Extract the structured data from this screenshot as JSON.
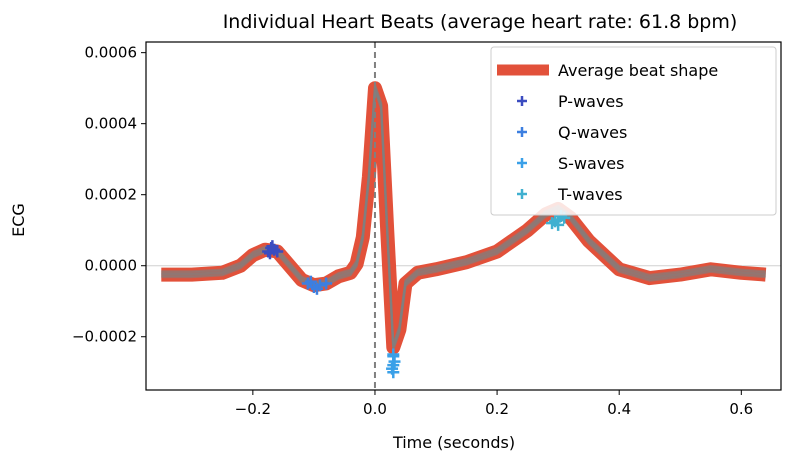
{
  "chart_data": {
    "type": "line",
    "title": "Individual Heart Beats (average heart rate: 61.8 bpm)",
    "xlabel": "Time (seconds)",
    "ylabel": "ECG",
    "xlim": [
      -0.375,
      0.665
    ],
    "ylim": [
      -0.00035,
      0.00063
    ],
    "x_ticks": [
      {
        "value": -0.2,
        "label": "−0.2"
      },
      {
        "value": 0.0,
        "label": "0.0"
      },
      {
        "value": 0.2,
        "label": "0.2"
      },
      {
        "value": 0.4,
        "label": "0.4"
      },
      {
        "value": 0.6,
        "label": "0.6"
      }
    ],
    "y_ticks": [
      {
        "value": -0.0002,
        "label": "−0.0002"
      },
      {
        "value": 0.0,
        "label": "0.0000"
      },
      {
        "value": 0.0002,
        "label": "0.0002"
      },
      {
        "value": 0.0004,
        "label": "0.0004"
      },
      {
        "value": 0.0006,
        "label": "0.0006"
      }
    ],
    "grid": false,
    "legend_position": "top-right",
    "zero_line": true,
    "r_peak_line_x": 0.0,
    "average_beat": {
      "name": "Average beat shape",
      "color": "#e2513a",
      "x": [
        -0.35,
        -0.3,
        -0.25,
        -0.22,
        -0.2,
        -0.18,
        -0.16,
        -0.14,
        -0.12,
        -0.1,
        -0.08,
        -0.06,
        -0.04,
        -0.03,
        -0.02,
        -0.01,
        0.0,
        0.01,
        0.02,
        0.03,
        0.04,
        0.05,
        0.07,
        0.1,
        0.15,
        0.2,
        0.25,
        0.28,
        0.3,
        0.32,
        0.35,
        0.4,
        0.45,
        0.5,
        0.55,
        0.6,
        0.64
      ],
      "y": [
        -2.5e-05,
        -2.5e-05,
        -2e-05,
        0.0,
        3e-05,
        4.5e-05,
        4e-05,
        0.0,
        -4e-05,
        -5.5e-05,
        -5e-05,
        -3e-05,
        -2e-05,
        5e-06,
        8e-05,
        0.00025,
        0.0005,
        0.00045,
        0.0001,
        -0.00023,
        -0.00018,
        -5e-05,
        -2e-05,
        -1e-05,
        1e-05,
        4e-05,
        0.0001,
        0.000145,
        0.00016,
        0.000135,
        7e-05,
        -1e-05,
        -3.5e-05,
        -2.5e-05,
        -1e-05,
        -2e-05,
        -2.5e-05
      ]
    },
    "beat_traces": {
      "color": "#808080",
      "offsets": [
        6e-06,
        -4e-06,
        2e-06,
        -7e-06,
        9e-06,
        0.0
      ]
    },
    "markers": [
      {
        "name": "P-waves",
        "color": "#3b4cc0",
        "points": [
          [
            -0.175,
            4e-05
          ],
          [
            -0.17,
            5e-05
          ],
          [
            -0.165,
            4.5e-05
          ],
          [
            -0.16,
            4e-05
          ],
          [
            -0.172,
            3.5e-05
          ],
          [
            -0.168,
            5.5e-05
          ]
        ]
      },
      {
        "name": "Q-waves",
        "color": "#3c7fe0",
        "points": [
          [
            -0.11,
            -5e-05
          ],
          [
            -0.1,
            -6e-05
          ],
          [
            -0.09,
            -5.5e-05
          ],
          [
            -0.08,
            -5e-05
          ],
          [
            -0.095,
            -6.5e-05
          ],
          [
            -0.105,
            -4.5e-05
          ]
        ]
      },
      {
        "name": "S-waves",
        "color": "#3aa0e8",
        "points": [
          [
            0.03,
            -0.00025
          ],
          [
            0.03,
            -0.00028
          ],
          [
            0.03,
            -0.0003
          ],
          [
            0.032,
            -0.00027
          ],
          [
            0.028,
            -0.00029
          ],
          [
            0.03,
            -0.000255
          ]
        ]
      },
      {
        "name": "T-waves",
        "color": "#40b0d0",
        "points": [
          [
            0.29,
            0.00012
          ],
          [
            0.3,
            0.00013
          ],
          [
            0.305,
            0.00014
          ],
          [
            0.295,
            0.000125
          ],
          [
            0.31,
            0.000135
          ],
          [
            0.3,
            0.000115
          ]
        ]
      }
    ]
  }
}
